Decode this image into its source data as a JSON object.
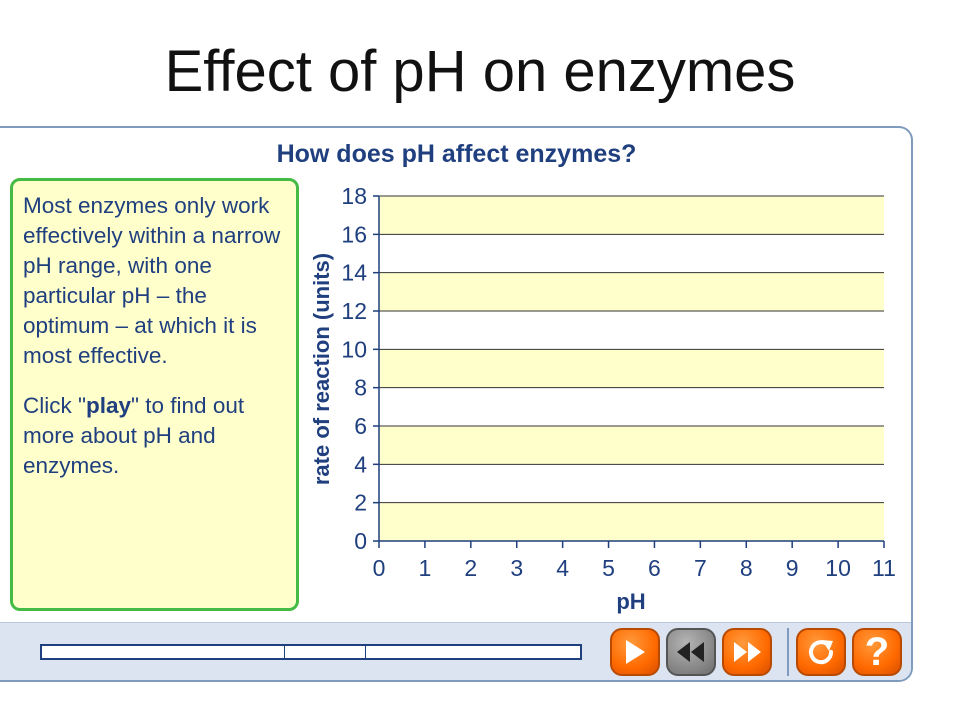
{
  "slide_title": "Effect of pH on enzymes",
  "panel": {
    "heading": "How does pH affect enzymes?",
    "info": {
      "paragraph1": "Most enzymes only work effectively within a narrow pH range, with one particular pH – the optimum – at which it is most effective.",
      "paragraph2_before": "Click \"",
      "paragraph2_bold": "play",
      "paragraph2_after": "\" to find out more about pH and enzymes."
    }
  },
  "chart_data": {
    "type": "line",
    "xlabel": "pH",
    "ylabel": "rate of reaction (units)",
    "x_ticks": [
      "0",
      "1",
      "2",
      "3",
      "4",
      "5",
      "6",
      "7",
      "8",
      "9",
      "10",
      "11"
    ],
    "y_ticks": [
      "0",
      "2",
      "4",
      "6",
      "8",
      "10",
      "12",
      "14",
      "16",
      "18"
    ],
    "xlim": [
      0,
      11
    ],
    "ylim": [
      0,
      18
    ],
    "grid": true,
    "band_color": "#ffffcc",
    "series": []
  },
  "controls": {
    "progress": {
      "segment_boundaries": [
        0.45,
        0.6
      ]
    },
    "buttons": [
      {
        "icon": "play-icon"
      },
      {
        "icon": "rewind-icon"
      },
      {
        "icon": "fast-forward-icon"
      },
      {
        "icon": "replay-icon"
      },
      {
        "icon": "help-icon",
        "label": "?"
      }
    ]
  },
  "colors": {
    "accent": "#ff6a00",
    "text_blue": "#1f3f7f",
    "box_border": "#44bb44",
    "panel_border": "#7f9bbd"
  }
}
